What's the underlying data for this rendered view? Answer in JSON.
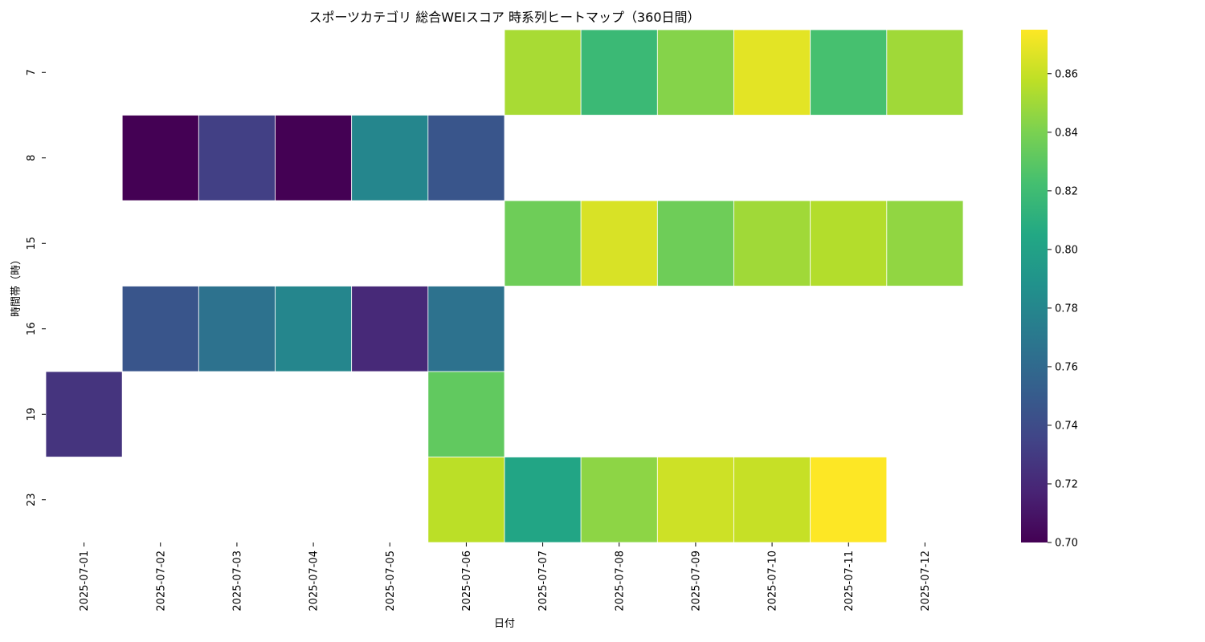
{
  "chart_data": {
    "type": "heatmap",
    "title": "スポーツカテゴリ 総合WEIスコア 時系列ヒートマップ（360日間）",
    "xlabel": "日付",
    "ylabel": "時間帯（時）",
    "x": [
      "2025-07-01",
      "2025-07-02",
      "2025-07-03",
      "2025-07-04",
      "2025-07-05",
      "2025-07-06",
      "2025-07-07",
      "2025-07-08",
      "2025-07-09",
      "2025-07-10",
      "2025-07-11",
      "2025-07-12"
    ],
    "y": [
      "7",
      "8",
      "15",
      "16",
      "19",
      "23"
    ],
    "values": [
      [
        null,
        null,
        null,
        null,
        null,
        null,
        0.852,
        0.818,
        0.843,
        0.868,
        0.823,
        0.85
      ],
      [
        null,
        0.7,
        0.733,
        0.7,
        0.78,
        0.746,
        null,
        null,
        null,
        null,
        null,
        null
      ],
      [
        null,
        null,
        null,
        null,
        null,
        null,
        0.836,
        0.865,
        0.836,
        0.85,
        0.855,
        0.846
      ],
      [
        null,
        0.746,
        0.766,
        0.78,
        0.72,
        0.766,
        null,
        null,
        null,
        null,
        null,
        null
      ],
      [
        0.726,
        null,
        null,
        null,
        null,
        0.832,
        null,
        null,
        null,
        null,
        null,
        null
      ],
      [
        null,
        null,
        null,
        null,
        null,
        0.857,
        0.803,
        0.845,
        0.862,
        0.86,
        0.875,
        null
      ]
    ],
    "colormap": "viridis",
    "vmin": 0.7,
    "vmax": 0.875,
    "colorbar_ticks": [
      0.7,
      0.72,
      0.74,
      0.76,
      0.78,
      0.8,
      0.82,
      0.84,
      0.86
    ],
    "colorbar_tick_labels": [
      "0.70",
      "0.72",
      "0.74",
      "0.76",
      "0.78",
      "0.80",
      "0.82",
      "0.84",
      "0.86"
    ]
  }
}
